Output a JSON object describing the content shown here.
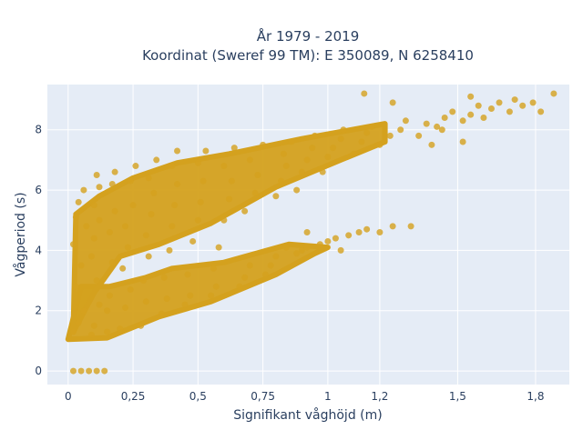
{
  "chart_data": {
    "type": "scatter",
    "title_line1": "År 1979 - 2019",
    "title_line2": "Koordinat (Sweref 99 TM): E 350089, N 6258410",
    "xlabel": "Signifikant våghöjd (m)",
    "ylabel": "Vågperiod (s)",
    "xlim": [
      -0.08,
      1.93
    ],
    "ylim": [
      -0.45,
      9.5
    ],
    "x_ticks": [
      0,
      0.25,
      0.5,
      0.75,
      1,
      1.2,
      1.5,
      1.8
    ],
    "x_tick_labels": [
      "0",
      "0,25",
      "0,5",
      "0,75",
      "1",
      "1,2",
      "1,5",
      "1,8"
    ],
    "y_ticks": [
      0,
      2,
      4,
      6,
      8
    ],
    "y_tick_labels": [
      "0",
      "2",
      "4",
      "6",
      "8"
    ],
    "grid": true,
    "colors": {
      "marker": "#d4a11e",
      "plot_bg": "#e5ecf6",
      "grid": "#ffffff",
      "text": "#2a3f5f"
    },
    "series": [
      {
        "points": [
          [
            0.02,
            0
          ],
          [
            0.05,
            0
          ],
          [
            0.08,
            0
          ],
          [
            0.11,
            0
          ],
          [
            0.14,
            0
          ],
          [
            0.02,
            1.3
          ],
          [
            0.04,
            1.6
          ],
          [
            0.06,
            2.0
          ],
          [
            0.03,
            2.8
          ],
          [
            0.05,
            3.5
          ],
          [
            0.02,
            4.2
          ],
          [
            0.07,
            4.8
          ],
          [
            0.04,
            5.6
          ],
          [
            0.06,
            6.0
          ],
          [
            0.03,
            5.1
          ],
          [
            0.09,
            1.2
          ],
          [
            0.1,
            1.5
          ],
          [
            0.12,
            2.2
          ],
          [
            0.11,
            3.0
          ],
          [
            0.09,
            3.8
          ],
          [
            0.1,
            4.4
          ],
          [
            0.12,
            5.0
          ],
          [
            0.1,
            5.5
          ],
          [
            0.12,
            6.1
          ],
          [
            0.11,
            6.5
          ],
          [
            0.15,
            1.3
          ],
          [
            0.16,
            2.5
          ],
          [
            0.17,
            3.6
          ],
          [
            0.16,
            4.6
          ],
          [
            0.18,
            5.3
          ],
          [
            0.17,
            6.2
          ],
          [
            0.18,
            6.6
          ],
          [
            0.15,
            2.0
          ],
          [
            0.2,
            1.4
          ],
          [
            0.22,
            2.1
          ],
          [
            0.24,
            2.7
          ],
          [
            0.21,
            3.4
          ],
          [
            0.23,
            4.1
          ],
          [
            0.22,
            4.8
          ],
          [
            0.25,
            5.5
          ],
          [
            0.24,
            6.3
          ],
          [
            0.26,
            6.8
          ],
          [
            0.28,
            1.5
          ],
          [
            0.3,
            2.3
          ],
          [
            0.29,
            3.0
          ],
          [
            0.31,
            3.8
          ],
          [
            0.3,
            4.5
          ],
          [
            0.32,
            5.2
          ],
          [
            0.33,
            5.9
          ],
          [
            0.31,
            6.4
          ],
          [
            0.34,
            7.0
          ],
          [
            0.36,
            1.9
          ],
          [
            0.38,
            2.4
          ],
          [
            0.37,
            3.1
          ],
          [
            0.39,
            4.0
          ],
          [
            0.4,
            4.8
          ],
          [
            0.41,
            5.5
          ],
          [
            0.42,
            6.2
          ],
          [
            0.4,
            6.8
          ],
          [
            0.42,
            7.3
          ],
          [
            0.45,
            2.2
          ],
          [
            0.47,
            2.5
          ],
          [
            0.46,
            3.2
          ],
          [
            0.48,
            4.3
          ],
          [
            0.5,
            5.0
          ],
          [
            0.51,
            5.6
          ],
          [
            0.52,
            6.3
          ],
          [
            0.5,
            6.9
          ],
          [
            0.53,
            7.3
          ],
          [
            0.55,
            2.5
          ],
          [
            0.57,
            2.8
          ],
          [
            0.56,
            3.4
          ],
          [
            0.58,
            4.1
          ],
          [
            0.6,
            5.0
          ],
          [
            0.62,
            5.7
          ],
          [
            0.63,
            6.3
          ],
          [
            0.6,
            6.8
          ],
          [
            0.64,
            7.4
          ],
          [
            0.66,
            2.8
          ],
          [
            0.68,
            3.1
          ],
          [
            0.7,
            3.5
          ],
          [
            0.68,
            5.3
          ],
          [
            0.72,
            5.9
          ],
          [
            0.73,
            6.5
          ],
          [
            0.7,
            7.0
          ],
          [
            0.75,
            7.5
          ],
          [
            0.76,
            3.2
          ],
          [
            0.78,
            3.5
          ],
          [
            0.8,
            3.8
          ],
          [
            0.8,
            5.8
          ],
          [
            0.82,
            6.3
          ],
          [
            0.84,
            6.8
          ],
          [
            0.83,
            7.2
          ],
          [
            0.86,
            7.6
          ],
          [
            0.88,
            3.9
          ],
          [
            0.9,
            4.0
          ],
          [
            0.92,
            4.1
          ],
          [
            0.88,
            6.0
          ],
          [
            0.9,
            6.6
          ],
          [
            0.92,
            7.0
          ],
          [
            0.94,
            7.4
          ],
          [
            0.95,
            7.8
          ],
          [
            0.97,
            4.2
          ],
          [
            1.0,
            4.3
          ],
          [
            1.03,
            4.4
          ],
          [
            0.98,
            6.6
          ],
          [
            1.0,
            7.1
          ],
          [
            1.02,
            7.4
          ],
          [
            1.05,
            7.7
          ],
          [
            1.06,
            8.0
          ],
          [
            1.08,
            4.5
          ],
          [
            1.12,
            4.6
          ],
          [
            1.15,
            4.7
          ],
          [
            1.1,
            7.2
          ],
          [
            1.13,
            7.6
          ],
          [
            1.15,
            7.9
          ],
          [
            1.17,
            8.1
          ],
          [
            1.2,
            4.6
          ],
          [
            1.25,
            4.8
          ],
          [
            1.32,
            4.8
          ],
          [
            1.2,
            7.5
          ],
          [
            1.24,
            7.8
          ],
          [
            1.28,
            8.0
          ],
          [
            1.3,
            8.3
          ],
          [
            1.35,
            7.8
          ],
          [
            1.38,
            8.2
          ],
          [
            1.42,
            8.1
          ],
          [
            1.45,
            8.4
          ],
          [
            1.48,
            8.6
          ],
          [
            1.52,
            8.3
          ],
          [
            1.55,
            8.5
          ],
          [
            1.58,
            8.8
          ],
          [
            1.6,
            8.4
          ],
          [
            1.63,
            8.7
          ],
          [
            1.66,
            8.9
          ],
          [
            1.7,
            8.6
          ],
          [
            1.72,
            9.0
          ],
          [
            1.75,
            8.8
          ],
          [
            1.79,
            8.9
          ],
          [
            1.82,
            8.6
          ],
          [
            1.87,
            9.2
          ],
          [
            1.14,
            9.2
          ],
          [
            1.25,
            8.9
          ],
          [
            1.55,
            9.1
          ],
          [
            1.44,
            8.0
          ],
          [
            1.52,
            7.6
          ],
          [
            1.4,
            7.5
          ],
          [
            0.84,
            4.1
          ],
          [
            0.92,
            4.6
          ],
          [
            1.05,
            4.0
          ]
        ]
      }
    ]
  }
}
